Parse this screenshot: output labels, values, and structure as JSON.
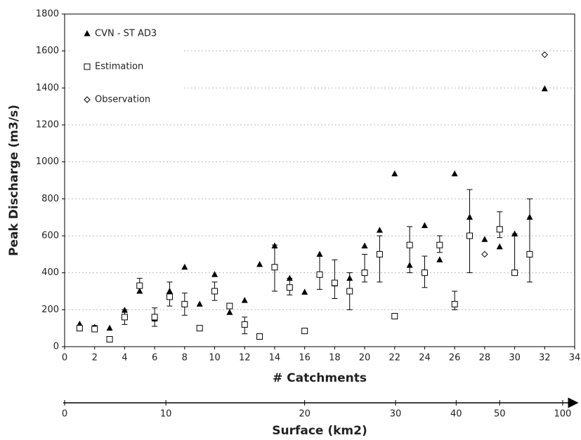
{
  "chart_data": {
    "type": "scatter",
    "xlabel": "# Catchments",
    "ylabel": "Peak Discharge (m3/s)",
    "x2label": "Surface (km2)",
    "xlim": [
      0,
      34
    ],
    "xticks": [
      0,
      2,
      4,
      6,
      8,
      10,
      12,
      14,
      16,
      18,
      20,
      22,
      24,
      26,
      28,
      30,
      32,
      34
    ],
    "ylim": [
      0,
      1800
    ],
    "yticks": [
      0,
      200,
      400,
      600,
      800,
      1000,
      1200,
      1400,
      1600,
      1800
    ],
    "x2ticks": [
      {
        "value": 0,
        "label": "0"
      },
      {
        "value": 6.75,
        "label": "10"
      },
      {
        "value": 16,
        "label": "20"
      },
      {
        "value": 22.06,
        "label": "30"
      },
      {
        "value": 26.1,
        "label": "40"
      },
      {
        "value": 29,
        "label": "50"
      },
      {
        "value": 33.2,
        "label": "100"
      }
    ],
    "grid": true,
    "legend": "upper left",
    "x": [
      1,
      2,
      3,
      4,
      5,
      6,
      7,
      8,
      9,
      10,
      11,
      12,
      13,
      14,
      15,
      16,
      17,
      18,
      19,
      20,
      21,
      22,
      23,
      24,
      25,
      26,
      27,
      28,
      29,
      30,
      31,
      32
    ],
    "series": [
      {
        "name": "CVN - ST AD3",
        "marker": "triangle",
        "color": "#000000",
        "values": [
          122,
          105,
          100,
          197,
          300,
          150,
          300,
          430,
          230,
          390,
          185,
          250,
          445,
          545,
          370,
          295,
          500,
          340,
          370,
          545,
          630,
          935,
          440,
          655,
          470,
          935,
          700,
          580,
          540,
          610,
          700,
          1395
        ]
      },
      {
        "name": "Estimation",
        "marker": "square",
        "color": "#000000",
        "values": [
          100,
          95,
          40,
          160,
          330,
          160,
          270,
          230,
          100,
          300,
          220,
          120,
          55,
          430,
          320,
          85,
          390,
          345,
          300,
          400,
          500,
          165,
          550,
          400,
          550,
          230,
          600,
          null,
          635,
          400,
          500,
          null
        ],
        "low": [
          null,
          80,
          null,
          120,
          290,
          110,
          220,
          170,
          null,
          250,
          null,
          70,
          null,
          300,
          280,
          null,
          310,
          260,
          200,
          350,
          350,
          null,
          400,
          320,
          510,
          200,
          400,
          null,
          590,
          400,
          350,
          null
        ],
        "high": [
          null,
          115,
          null,
          200,
          370,
          210,
          350,
          290,
          null,
          350,
          null,
          160,
          null,
          550,
          370,
          null,
          490,
          470,
          400,
          500,
          600,
          null,
          650,
          490,
          600,
          300,
          850,
          null,
          730,
          610,
          800,
          null
        ]
      },
      {
        "name": "Observation",
        "marker": "diamond",
        "color": "#000000",
        "values": [
          null,
          null,
          null,
          null,
          null,
          null,
          null,
          null,
          null,
          null,
          null,
          null,
          null,
          null,
          null,
          null,
          null,
          null,
          null,
          null,
          null,
          null,
          null,
          null,
          null,
          null,
          null,
          500,
          null,
          null,
          null,
          1580
        ]
      }
    ]
  }
}
